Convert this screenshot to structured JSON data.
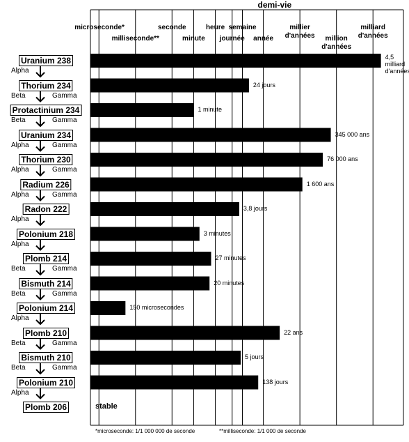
{
  "chart_data": {
    "type": "bar",
    "orientation": "horizontal",
    "title": "demi-vie",
    "xscale": "log",
    "xlim": [
      2e-07,
      1e+19
    ],
    "xticks": [
      {
        "value": 1e-06,
        "label": "microseconde*"
      },
      {
        "value": 0.001,
        "label": "milliseconde**"
      },
      {
        "value": 1,
        "label": "seconde"
      },
      {
        "value": 60,
        "label": "minute"
      },
      {
        "value": 3600,
        "label": "heure"
      },
      {
        "value": 86400,
        "label": "journée"
      },
      {
        "value": 604800,
        "label": "semaine"
      },
      {
        "value": 31560000,
        "label": "année"
      },
      {
        "value": 31560000000,
        "label": "millier d'années"
      },
      {
        "value": 31560000000000,
        "label": "million d'années"
      },
      {
        "value": 31560000000000000,
        "label": "milliard d'années"
      }
    ],
    "grid": true,
    "color": "#000000",
    "categories": [
      "Uranium 238",
      "Thorium 234",
      "Protactinium 234",
      "Uranium 234",
      "Thorium 230",
      "Radium 226",
      "Radon 222",
      "Polonium 218",
      "Plomb 214",
      "Bismuth 214",
      "Polonium 214",
      "Plomb 210",
      "Bismuth 210",
      "Polonium 210",
      "Plomb 206"
    ],
    "values": [
      142000000000000000,
      2073600,
      60,
      10890000000000,
      2398000000000,
      50500000000,
      328320,
      180,
      1620,
      1200,
      0.00015,
      694000000,
      432000,
      11923200,
      null
    ],
    "value_labels": [
      "4,5 milliard d'années",
      "24 jours",
      "1 minute",
      "345 000 ans",
      "76 000 ans",
      "1 600  ans",
      "3,8 jours",
      "3 minutes",
      "27 minutes",
      "20 minutes",
      "150 microsecondes",
      "22 ans",
      "5 jours",
      "138 jours",
      "stable"
    ],
    "decays": [
      [
        "Alpha"
      ],
      [
        "Beta",
        "Gamma"
      ],
      [
        "Beta",
        "Gamma"
      ],
      [
        "Alpha",
        "Gamma"
      ],
      [
        "Alpha",
        "Gamma"
      ],
      [
        "Alpha",
        "Gamma"
      ],
      [
        "Alpha"
      ],
      [
        "Alpha"
      ],
      [
        "Beta",
        "Gamma"
      ],
      [
        "Beta",
        "Gamma"
      ],
      [
        "Alpha"
      ],
      [
        "Beta",
        "Gamma"
      ],
      [
        "Beta",
        "Gamma"
      ],
      [
        "Alpha"
      ]
    ],
    "footnotes": [
      "*microseconde: 1/1 000 000 de seconde",
      "**milliseconde: 1/1 000 de seconde"
    ]
  }
}
